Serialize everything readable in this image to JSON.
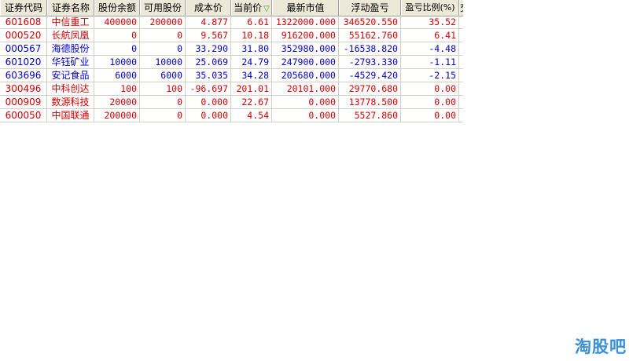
{
  "colors": {
    "up": "#d40000",
    "down": "#0000c8",
    "header_bg": "#ece9d8",
    "logo": "#3a8fd8"
  },
  "table": {
    "columns": [
      {
        "key": "code",
        "label": "证券代码"
      },
      {
        "key": "name",
        "label": "证券名称"
      },
      {
        "key": "balance",
        "label": "股份余额"
      },
      {
        "key": "available",
        "label": "可用股份"
      },
      {
        "key": "cost",
        "label": "成本价"
      },
      {
        "key": "price",
        "label": "当前价",
        "sort_icon": "sort-desc-triangle-icon"
      },
      {
        "key": "market_value",
        "label": "最新市值"
      },
      {
        "key": "pl",
        "label": "浮动盈亏"
      },
      {
        "key": "pl_pct",
        "label": "盈亏比例(%)"
      },
      {
        "key": "extra",
        "label": "交"
      }
    ],
    "rows": [
      {
        "code": "601608",
        "name": "中信重工",
        "balance": "400000",
        "available": "200000",
        "cost": "4.877",
        "price": "6.61",
        "market_value": "1322000.000",
        "pl": "346520.550",
        "pl_pct": "35.52",
        "color": "up"
      },
      {
        "code": "000520",
        "name": "长航凤凰",
        "balance": "0",
        "available": "0",
        "cost": "9.567",
        "price": "10.18",
        "market_value": "916200.000",
        "pl": "55162.760",
        "pl_pct": "6.41",
        "color": "up"
      },
      {
        "code": "000567",
        "name": "海德股份",
        "balance": "0",
        "available": "0",
        "cost": "33.290",
        "price": "31.80",
        "market_value": "352980.000",
        "pl": "-16538.820",
        "pl_pct": "-4.48",
        "color": "down"
      },
      {
        "code": "601020",
        "name": "华钰矿业",
        "balance": "10000",
        "available": "10000",
        "cost": "25.069",
        "price": "24.79",
        "market_value": "247900.000",
        "pl": "-2793.330",
        "pl_pct": "-1.11",
        "color": "down"
      },
      {
        "code": "603696",
        "name": "安记食品",
        "balance": "6000",
        "available": "6000",
        "cost": "35.035",
        "price": "34.28",
        "market_value": "205680.000",
        "pl": "-4529.420",
        "pl_pct": "-2.15",
        "color": "down"
      },
      {
        "code": "300496",
        "name": "中科创达",
        "balance": "100",
        "available": "100",
        "cost": "-96.697",
        "price": "201.01",
        "market_value": "20101.000",
        "pl": "29770.680",
        "pl_pct": "0.00",
        "color": "up"
      },
      {
        "code": "000909",
        "name": "数源科技",
        "balance": "20000",
        "available": "0",
        "cost": "0.000",
        "price": "22.67",
        "market_value": "0.000",
        "pl": "13778.500",
        "pl_pct": "0.00",
        "color": "up"
      },
      {
        "code": "600050",
        "name": "中国联通",
        "balance": "200000",
        "available": "0",
        "cost": "0.000",
        "price": "4.54",
        "market_value": "0.000",
        "pl": "5527.860",
        "pl_pct": "0.00",
        "color": "up"
      }
    ]
  },
  "watermark": {
    "text": "淘股吧"
  }
}
